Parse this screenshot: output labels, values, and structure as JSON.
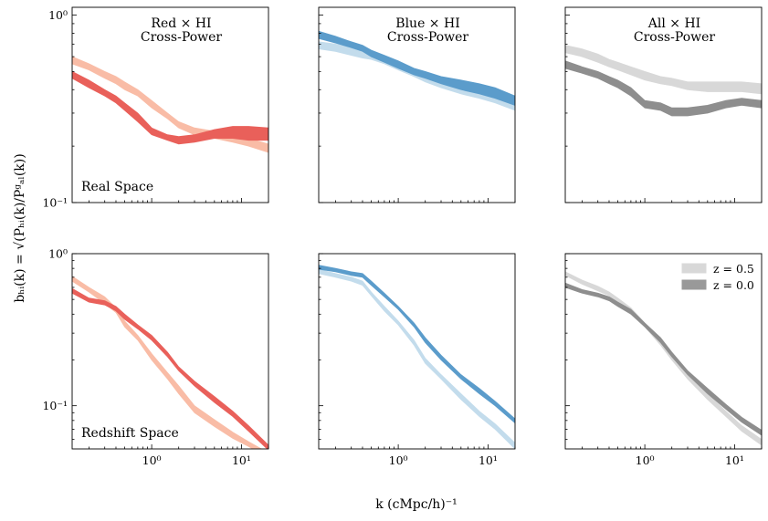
{
  "figure": {
    "xlabel": "k (cMpc/h)⁻¹",
    "ylabel": "bₕᵢ(k) = √(Pₕᵢ(k)/Pᵍₐₗ(k))"
  },
  "chart_data": [
    {
      "type": "area",
      "title": "Red × HI\nCross-Power",
      "annotation": "Real Space",
      "xscale": "log",
      "yscale": "log",
      "xlim": [
        0.13,
        20
      ],
      "ylim": [
        0.1,
        1.1
      ],
      "ytick_labels": [
        "10⁰",
        "10⁻¹"
      ],
      "x": [
        0.13,
        0.2,
        0.3,
        0.4,
        0.5,
        0.7,
        1.0,
        1.5,
        2.0,
        3.0,
        5.0,
        8.0,
        12.0,
        20.0
      ],
      "series": [
        {
          "name": "z = 0.5",
          "color": "#f9bca6",
          "lower": [
            0.55,
            0.51,
            0.46,
            0.43,
            0.4,
            0.37,
            0.32,
            0.28,
            0.25,
            0.23,
            0.22,
            0.21,
            0.2,
            0.185
          ],
          "upper": [
            0.6,
            0.55,
            0.5,
            0.47,
            0.44,
            0.4,
            0.35,
            0.3,
            0.27,
            0.25,
            0.24,
            0.23,
            0.22,
            0.205
          ]
        },
        {
          "name": "z = 0.0",
          "color": "#e9605a",
          "lower": [
            0.46,
            0.41,
            0.37,
            0.34,
            0.31,
            0.27,
            0.23,
            0.215,
            0.205,
            0.21,
            0.22,
            0.22,
            0.215,
            0.215
          ],
          "upper": [
            0.5,
            0.45,
            0.4,
            0.37,
            0.34,
            0.3,
            0.25,
            0.23,
            0.225,
            0.23,
            0.245,
            0.255,
            0.255,
            0.25
          ]
        }
      ]
    },
    {
      "type": "area",
      "title": "Blue × HI\nCross-Power",
      "annotation": "",
      "xscale": "log",
      "yscale": "log",
      "xlim": [
        0.13,
        20
      ],
      "ylim": [
        0.1,
        1.1
      ],
      "ytick_labels": [],
      "x": [
        0.13,
        0.2,
        0.3,
        0.4,
        0.5,
        0.7,
        1.0,
        1.5,
        2.0,
        3.0,
        5.0,
        8.0,
        12.0,
        20.0
      ],
      "series": [
        {
          "name": "z = 0.5",
          "color": "#c3dcec",
          "lower": [
            0.66,
            0.64,
            0.61,
            0.59,
            0.58,
            0.55,
            0.51,
            0.47,
            0.44,
            0.41,
            0.38,
            0.36,
            0.34,
            0.31
          ],
          "upper": [
            0.72,
            0.7,
            0.67,
            0.65,
            0.63,
            0.6,
            0.55,
            0.51,
            0.48,
            0.45,
            0.42,
            0.4,
            0.38,
            0.35
          ]
        },
        {
          "name": "z = 0.0",
          "color": "#5b9ccb",
          "lower": [
            0.75,
            0.71,
            0.67,
            0.64,
            0.6,
            0.56,
            0.52,
            0.48,
            0.46,
            0.43,
            0.4,
            0.38,
            0.36,
            0.33
          ],
          "upper": [
            0.82,
            0.77,
            0.72,
            0.69,
            0.65,
            0.61,
            0.57,
            0.52,
            0.5,
            0.47,
            0.45,
            0.43,
            0.41,
            0.37
          ]
        }
      ]
    },
    {
      "type": "area",
      "title": "All × HI\nCross-Power",
      "annotation": "",
      "xscale": "log",
      "yscale": "log",
      "xlim": [
        0.13,
        20
      ],
      "ylim": [
        0.1,
        1.1
      ],
      "ytick_labels": [],
      "x": [
        0.13,
        0.2,
        0.3,
        0.4,
        0.5,
        0.7,
        1.0,
        1.5,
        2.0,
        3.0,
        5.0,
        8.0,
        12.0,
        20.0
      ],
      "series": [
        {
          "name": "z = 0.5",
          "color": "#d8d8d8",
          "lower": [
            0.63,
            0.6,
            0.56,
            0.53,
            0.51,
            0.48,
            0.45,
            0.43,
            0.42,
            0.4,
            0.39,
            0.39,
            0.39,
            0.38
          ],
          "upper": [
            0.69,
            0.66,
            0.62,
            0.58,
            0.56,
            0.53,
            0.5,
            0.47,
            0.46,
            0.44,
            0.44,
            0.44,
            0.44,
            0.43
          ]
        },
        {
          "name": "z = 0.0",
          "color": "#8e8e8e",
          "lower": [
            0.52,
            0.49,
            0.46,
            0.43,
            0.41,
            0.37,
            0.32,
            0.31,
            0.29,
            0.29,
            0.3,
            0.32,
            0.33,
            0.32
          ],
          "upper": [
            0.57,
            0.53,
            0.5,
            0.47,
            0.45,
            0.41,
            0.35,
            0.34,
            0.32,
            0.32,
            0.33,
            0.35,
            0.36,
            0.35
          ]
        }
      ]
    },
    {
      "type": "area",
      "title": "",
      "annotation": "Redshift Space",
      "xscale": "log",
      "yscale": "log",
      "xlim": [
        0.13,
        20
      ],
      "ylim": [
        0.052,
        1.0
      ],
      "ytick_labels": [
        "10⁰",
        "10⁻¹"
      ],
      "xtick_labels": [
        "10⁰",
        "10¹"
      ],
      "x": [
        0.13,
        0.2,
        0.3,
        0.4,
        0.5,
        0.7,
        1.0,
        1.5,
        2.0,
        3.0,
        5.0,
        8.0,
        12.0,
        20.0
      ],
      "series": [
        {
          "name": "z = 0.5",
          "color": "#f9bca6",
          "lower": [
            0.66,
            0.56,
            0.47,
            0.41,
            0.33,
            0.27,
            0.2,
            0.15,
            0.12,
            0.09,
            0.073,
            0.061,
            0.054,
            0.045
          ],
          "upper": [
            0.71,
            0.6,
            0.52,
            0.44,
            0.36,
            0.29,
            0.22,
            0.165,
            0.135,
            0.1,
            0.081,
            0.067,
            0.058,
            0.049
          ]
        },
        {
          "name": "z = 0.0",
          "color": "#e9605a",
          "lower": [
            0.55,
            0.48,
            0.46,
            0.42,
            0.37,
            0.32,
            0.27,
            0.21,
            0.17,
            0.135,
            0.105,
            0.085,
            0.068,
            0.051
          ],
          "upper": [
            0.59,
            0.51,
            0.49,
            0.45,
            0.4,
            0.34,
            0.29,
            0.225,
            0.18,
            0.145,
            0.115,
            0.092,
            0.074,
            0.055
          ]
        }
      ]
    },
    {
      "type": "area",
      "title": "",
      "annotation": "",
      "xscale": "log",
      "yscale": "log",
      "xlim": [
        0.13,
        20
      ],
      "ylim": [
        0.052,
        1.0
      ],
      "ytick_labels": [],
      "xtick_labels": [
        "10⁰",
        "10¹"
      ],
      "x": [
        0.13,
        0.2,
        0.3,
        0.4,
        0.5,
        0.7,
        1.0,
        1.5,
        2.0,
        3.0,
        5.0,
        8.0,
        12.0,
        20.0
      ],
      "series": [
        {
          "name": "z = 0.5",
          "color": "#c3dcec",
          "lower": [
            0.74,
            0.7,
            0.66,
            0.62,
            0.53,
            0.42,
            0.34,
            0.25,
            0.19,
            0.15,
            0.11,
            0.085,
            0.07,
            0.052
          ],
          "upper": [
            0.79,
            0.74,
            0.7,
            0.66,
            0.56,
            0.45,
            0.36,
            0.27,
            0.205,
            0.16,
            0.12,
            0.092,
            0.076,
            0.057
          ]
        },
        {
          "name": "z = 0.0",
          "color": "#5b9ccb",
          "lower": [
            0.79,
            0.76,
            0.72,
            0.7,
            0.62,
            0.52,
            0.43,
            0.33,
            0.26,
            0.2,
            0.15,
            0.12,
            0.1,
            0.077
          ],
          "upper": [
            0.84,
            0.8,
            0.76,
            0.74,
            0.66,
            0.55,
            0.45,
            0.35,
            0.28,
            0.215,
            0.16,
            0.13,
            0.107,
            0.082
          ]
        }
      ]
    },
    {
      "type": "area",
      "title": "",
      "annotation": "",
      "xscale": "log",
      "yscale": "log",
      "xlim": [
        0.13,
        20
      ],
      "ylim": [
        0.052,
        1.0
      ],
      "ytick_labels": [],
      "xtick_labels": [
        "10⁰",
        "10¹"
      ],
      "legend": {
        "placement": "upper-right",
        "entries": [
          {
            "label": "z = 0.5",
            "color": "#d8d8d8"
          },
          {
            "label": "z = 0.0",
            "color": "#999999"
          }
        ]
      },
      "x": [
        0.13,
        0.2,
        0.3,
        0.4,
        0.5,
        0.7,
        1.0,
        1.5,
        2.0,
        3.0,
        5.0,
        8.0,
        12.0,
        20.0
      ],
      "series": [
        {
          "name": "z = 0.5",
          "color": "#d8d8d8",
          "lower": [
            0.72,
            0.63,
            0.57,
            0.53,
            0.48,
            0.41,
            0.33,
            0.25,
            0.2,
            0.15,
            0.11,
            0.085,
            0.068,
            0.055
          ],
          "upper": [
            0.76,
            0.67,
            0.61,
            0.56,
            0.51,
            0.44,
            0.35,
            0.27,
            0.215,
            0.16,
            0.12,
            0.092,
            0.074,
            0.06
          ]
        },
        {
          "name": "z = 0.0",
          "color": "#8e8e8e",
          "lower": [
            0.6,
            0.55,
            0.52,
            0.49,
            0.45,
            0.4,
            0.33,
            0.26,
            0.21,
            0.16,
            0.12,
            0.095,
            0.078,
            0.064
          ],
          "upper": [
            0.64,
            0.58,
            0.55,
            0.52,
            0.48,
            0.43,
            0.35,
            0.28,
            0.225,
            0.17,
            0.13,
            0.102,
            0.084,
            0.069
          ]
        }
      ]
    }
  ]
}
